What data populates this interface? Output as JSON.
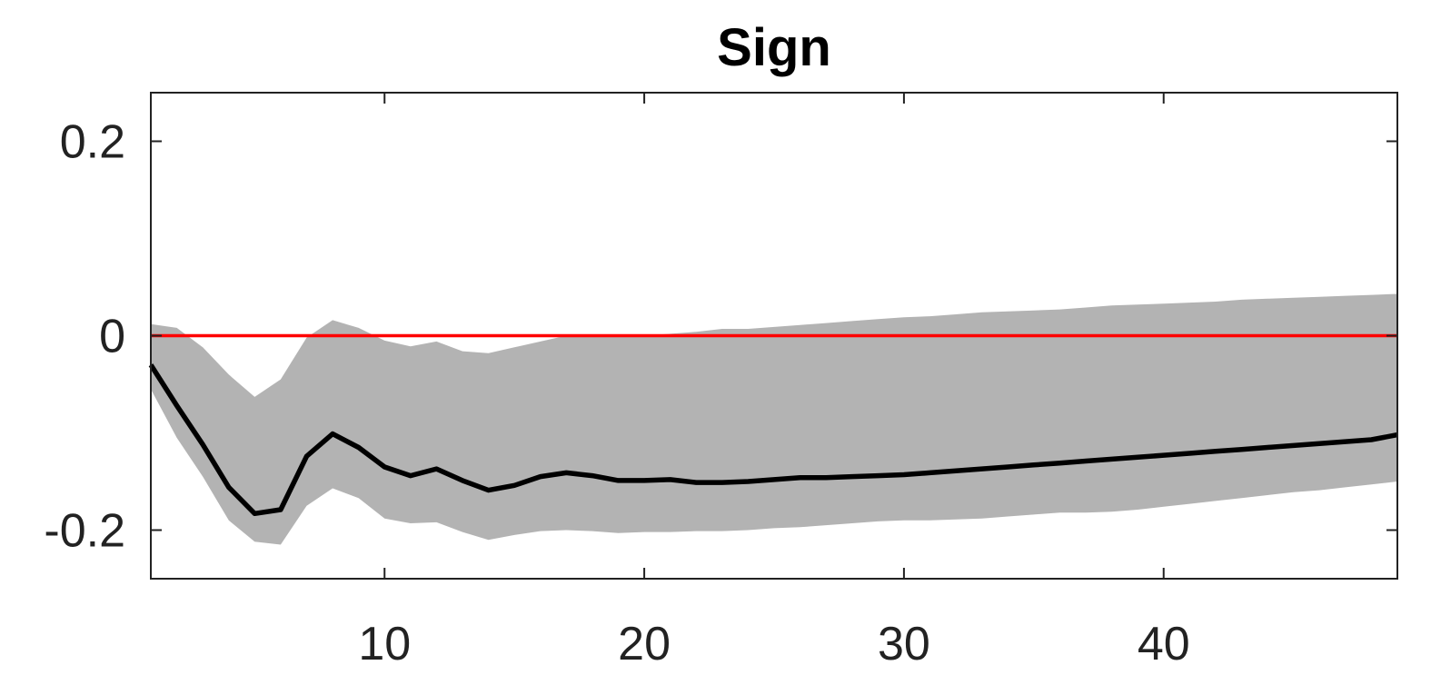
{
  "chart_data": {
    "type": "area",
    "title": "Sign",
    "xlabel": "",
    "ylabel": "",
    "xlim": [
      1,
      49
    ],
    "ylim": [
      -0.25,
      0.25
    ],
    "xticks": [
      10,
      20,
      30,
      40
    ],
    "yticks": [
      0.2,
      0,
      -0.2
    ],
    "xtick_labels": [
      "10",
      "20",
      "30",
      "40"
    ],
    "ytick_labels": [
      "0.2",
      "0",
      "-0.2"
    ],
    "grid": false,
    "legend": "none",
    "colors": {
      "band": "#b3b3b3",
      "median": "#000000",
      "zero_line": "#ff0000"
    },
    "x": [
      1,
      2,
      3,
      4,
      5,
      6,
      7,
      8,
      9,
      10,
      11,
      12,
      13,
      14,
      15,
      16,
      17,
      18,
      19,
      20,
      21,
      22,
      23,
      24,
      25,
      26,
      27,
      28,
      29,
      30,
      31,
      32,
      33,
      34,
      35,
      36,
      37,
      38,
      39,
      40,
      41,
      42,
      43,
      44,
      45,
      46,
      47,
      48,
      49
    ],
    "series": [
      {
        "role": "median",
        "values": [
          -0.03,
          -0.072,
          -0.112,
          -0.156,
          -0.183,
          -0.179,
          -0.124,
          -0.101,
          -0.115,
          -0.135,
          -0.144,
          -0.137,
          -0.149,
          -0.159,
          -0.154,
          -0.145,
          -0.141,
          -0.144,
          -0.149,
          -0.149,
          -0.148,
          -0.151,
          -0.151,
          -0.15,
          -0.148,
          -0.146,
          -0.146,
          -0.145,
          -0.144,
          -0.143,
          -0.141,
          -0.139,
          -0.137,
          -0.135,
          -0.133,
          -0.131,
          -0.129,
          -0.127,
          -0.125,
          -0.123,
          -0.121,
          -0.119,
          -0.117,
          -0.115,
          -0.113,
          -0.111,
          -0.109,
          -0.107,
          -0.102
        ]
      },
      {
        "role": "upper",
        "values": [
          0.012,
          0.008,
          -0.012,
          -0.04,
          -0.063,
          -0.045,
          -0.002,
          0.016,
          0.008,
          -0.005,
          -0.011,
          -0.006,
          -0.016,
          -0.018,
          -0.012,
          -0.006,
          0.0,
          0.0,
          0.0,
          0.0,
          0.002,
          0.004,
          0.007,
          0.007,
          0.009,
          0.011,
          0.013,
          0.015,
          0.017,
          0.019,
          0.02,
          0.022,
          0.024,
          0.025,
          0.026,
          0.027,
          0.029,
          0.031,
          0.032,
          0.033,
          0.034,
          0.035,
          0.037,
          0.038,
          0.039,
          0.04,
          0.041,
          0.042,
          0.043
        ]
      },
      {
        "role": "lower",
        "values": [
          -0.055,
          -0.105,
          -0.145,
          -0.19,
          -0.212,
          -0.215,
          -0.175,
          -0.157,
          -0.167,
          -0.188,
          -0.193,
          -0.192,
          -0.202,
          -0.21,
          -0.205,
          -0.201,
          -0.2,
          -0.201,
          -0.203,
          -0.202,
          -0.202,
          -0.201,
          -0.201,
          -0.2,
          -0.198,
          -0.197,
          -0.195,
          -0.193,
          -0.191,
          -0.19,
          -0.19,
          -0.189,
          -0.188,
          -0.186,
          -0.184,
          -0.182,
          -0.182,
          -0.181,
          -0.179,
          -0.176,
          -0.173,
          -0.17,
          -0.167,
          -0.164,
          -0.161,
          -0.159,
          -0.156,
          -0.153,
          -0.15
        ]
      }
    ],
    "reference_line": {
      "y": 0
    }
  }
}
